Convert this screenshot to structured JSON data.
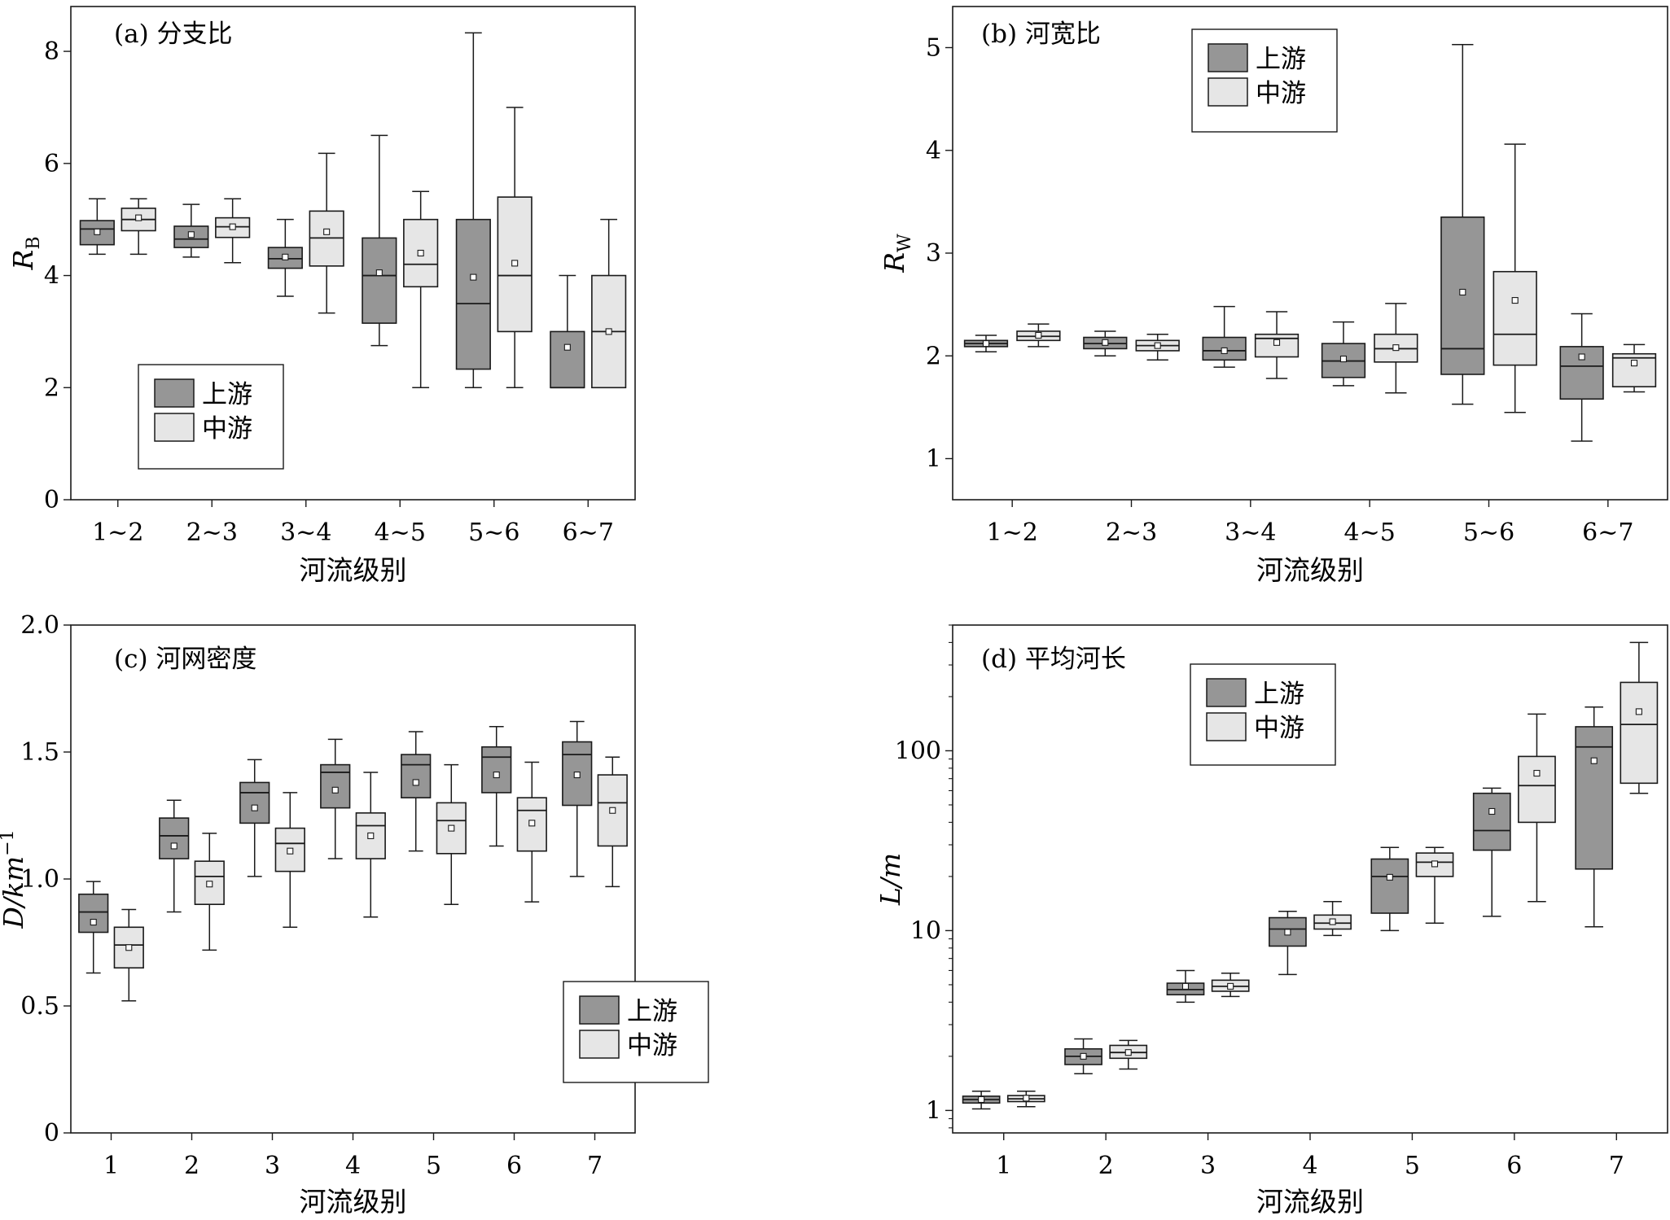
{
  "colors": {
    "upstream": "#969696",
    "midstream": "#e6e6e6",
    "stroke": "#1a1a1a"
  },
  "legend_labels": [
    "上游",
    "中游"
  ],
  "chart_data": [
    {
      "type": "box",
      "title": "(a) 分支比",
      "ylabel": "R",
      "ylabel_sub": "B",
      "xlabel": "河流级别",
      "ylim": [
        0,
        8.8
      ],
      "yticks": [
        0,
        2,
        4,
        6,
        8
      ],
      "ytick_labels": [
        "0",
        "2",
        "4",
        "6",
        "8"
      ],
      "yscale": "linear",
      "legend": "bottom-left",
      "categories": [
        "1~2",
        "2~3",
        "3~4",
        "4~5",
        "5~6",
        "6~7"
      ],
      "series": [
        {
          "name": "上游",
          "boxes": [
            {
              "min": 4.38,
              "q1": 4.55,
              "median": 4.83,
              "q3": 4.98,
              "max": 5.37,
              "mean": 4.78
            },
            {
              "min": 4.33,
              "q1": 4.5,
              "median": 4.65,
              "q3": 4.88,
              "max": 5.27,
              "mean": 4.73
            },
            {
              "min": 3.63,
              "q1": 4.13,
              "median": 4.3,
              "q3": 4.5,
              "max": 5.0,
              "mean": 4.33
            },
            {
              "min": 2.75,
              "q1": 3.15,
              "median": 4.0,
              "q3": 4.67,
              "max": 6.5,
              "mean": 4.05
            },
            {
              "min": 2.0,
              "q1": 2.33,
              "median": 3.5,
              "q3": 5.0,
              "max": 8.33,
              "mean": 3.97
            },
            {
              "min": 2.0,
              "q1": 2.0,
              "median": 2.0,
              "q3": 3.0,
              "max": 4.0,
              "mean": 2.72
            }
          ]
        },
        {
          "name": "中游",
          "boxes": [
            {
              "min": 4.38,
              "q1": 4.8,
              "median": 5.0,
              "q3": 5.2,
              "max": 5.37,
              "mean": 5.03
            },
            {
              "min": 4.23,
              "q1": 4.68,
              "median": 4.87,
              "q3": 5.03,
              "max": 5.37,
              "mean": 4.87
            },
            {
              "min": 3.33,
              "q1": 4.17,
              "median": 4.67,
              "q3": 5.15,
              "max": 6.18,
              "mean": 4.78
            },
            {
              "min": 2.0,
              "q1": 3.8,
              "median": 4.2,
              "q3": 5.0,
              "max": 5.5,
              "mean": 4.4
            },
            {
              "min": 2.0,
              "q1": 3.0,
              "median": 4.0,
              "q3": 5.4,
              "max": 7.0,
              "mean": 4.22
            },
            {
              "min": 2.0,
              "q1": 2.0,
              "median": 3.0,
              "q3": 4.0,
              "max": 5.0,
              "mean": 3.0
            }
          ]
        }
      ]
    },
    {
      "type": "box",
      "title": "(b) 河宽比",
      "ylabel": "R",
      "ylabel_sub": "W",
      "xlabel": "河流级别",
      "ylim": [
        0.6,
        5.4
      ],
      "yticks": [
        1,
        2,
        3,
        4,
        5
      ],
      "ytick_labels": [
        "1",
        "2",
        "3",
        "4",
        "5"
      ],
      "yscale": "linear",
      "legend": "top-left",
      "categories": [
        "1~2",
        "2~3",
        "3~4",
        "4~5",
        "5~6",
        "6~7"
      ],
      "series": [
        {
          "name": "上游",
          "boxes": [
            {
              "min": 2.04,
              "q1": 2.09,
              "median": 2.12,
              "q3": 2.15,
              "max": 2.2,
              "mean": 2.12
            },
            {
              "min": 2.0,
              "q1": 2.07,
              "median": 2.12,
              "q3": 2.18,
              "max": 2.24,
              "mean": 2.13
            },
            {
              "min": 1.89,
              "q1": 1.96,
              "median": 2.05,
              "q3": 2.18,
              "max": 2.48,
              "mean": 2.05
            },
            {
              "min": 1.71,
              "q1": 1.79,
              "median": 1.95,
              "q3": 2.12,
              "max": 2.33,
              "mean": 1.97
            },
            {
              "min": 1.53,
              "q1": 1.82,
              "median": 2.07,
              "q3": 3.35,
              "max": 5.03,
              "mean": 2.62
            },
            {
              "min": 1.17,
              "q1": 1.58,
              "median": 1.9,
              "q3": 2.09,
              "max": 2.41,
              "mean": 1.99
            }
          ]
        },
        {
          "name": "中游",
          "boxes": [
            {
              "min": 2.09,
              "q1": 2.15,
              "median": 2.19,
              "q3": 2.24,
              "max": 2.31,
              "mean": 2.2
            },
            {
              "min": 1.96,
              "q1": 2.05,
              "median": 2.1,
              "q3": 2.15,
              "max": 2.21,
              "mean": 2.1
            },
            {
              "min": 1.78,
              "q1": 1.99,
              "median": 2.17,
              "q3": 2.21,
              "max": 2.43,
              "mean": 2.13
            },
            {
              "min": 1.64,
              "q1": 1.94,
              "median": 2.07,
              "q3": 2.21,
              "max": 2.51,
              "mean": 2.08
            },
            {
              "min": 1.45,
              "q1": 1.91,
              "median": 2.21,
              "q3": 2.82,
              "max": 4.06,
              "mean": 2.54
            },
            {
              "min": 1.65,
              "q1": 1.7,
              "median": 1.98,
              "q3": 2.02,
              "max": 2.11,
              "mean": 1.93
            }
          ]
        }
      ]
    },
    {
      "type": "box",
      "title": "(c) 河网密度",
      "ylabel": "D/km",
      "ylabel_sup": "−1",
      "xlabel": "河流级别",
      "ylim": [
        0,
        2.0
      ],
      "yticks": [
        0,
        0.5,
        1.0,
        1.5,
        2.0
      ],
      "ytick_labels": [
        "0",
        "0.5",
        "1.0",
        "1.5",
        "2.0"
      ],
      "yscale": "linear",
      "legend": "bottom-right",
      "categories": [
        "1",
        "2",
        "3",
        "4",
        "5",
        "6",
        "7"
      ],
      "series": [
        {
          "name": "上游",
          "boxes": [
            {
              "min": 0.63,
              "q1": 0.79,
              "median": 0.87,
              "q3": 0.94,
              "max": 0.99,
              "mean": 0.83
            },
            {
              "min": 0.87,
              "q1": 1.08,
              "median": 1.17,
              "q3": 1.24,
              "max": 1.31,
              "mean": 1.13
            },
            {
              "min": 1.01,
              "q1": 1.22,
              "median": 1.34,
              "q3": 1.38,
              "max": 1.47,
              "mean": 1.28
            },
            {
              "min": 1.08,
              "q1": 1.28,
              "median": 1.42,
              "q3": 1.45,
              "max": 1.55,
              "mean": 1.35
            },
            {
              "min": 1.11,
              "q1": 1.32,
              "median": 1.45,
              "q3": 1.49,
              "max": 1.58,
              "mean": 1.38
            },
            {
              "min": 1.13,
              "q1": 1.34,
              "median": 1.48,
              "q3": 1.52,
              "max": 1.6,
              "mean": 1.41
            },
            {
              "min": 1.01,
              "q1": 1.29,
              "median": 1.49,
              "q3": 1.54,
              "max": 1.62,
              "mean": 1.41
            }
          ]
        },
        {
          "name": "中游",
          "boxes": [
            {
              "min": 0.52,
              "q1": 0.65,
              "median": 0.74,
              "q3": 0.81,
              "max": 0.88,
              "mean": 0.73
            },
            {
              "min": 0.72,
              "q1": 0.9,
              "median": 1.01,
              "q3": 1.07,
              "max": 1.18,
              "mean": 0.98
            },
            {
              "min": 0.81,
              "q1": 1.03,
              "median": 1.14,
              "q3": 1.2,
              "max": 1.34,
              "mean": 1.11
            },
            {
              "min": 0.85,
              "q1": 1.08,
              "median": 1.21,
              "q3": 1.26,
              "max": 1.42,
              "mean": 1.17
            },
            {
              "min": 0.9,
              "q1": 1.1,
              "median": 1.23,
              "q3": 1.3,
              "max": 1.45,
              "mean": 1.2
            },
            {
              "min": 0.91,
              "q1": 1.11,
              "median": 1.27,
              "q3": 1.32,
              "max": 1.46,
              "mean": 1.22
            },
            {
              "min": 0.97,
              "q1": 1.13,
              "median": 1.3,
              "q3": 1.41,
              "max": 1.48,
              "mean": 1.27
            }
          ]
        }
      ]
    },
    {
      "type": "box",
      "title": "(d) 平均河长",
      "ylabel": "L/m",
      "xlabel": "河流级别",
      "ylim": [
        0.75,
        500
      ],
      "yticks": [
        1,
        10,
        100
      ],
      "ytick_labels": [
        "1",
        "10",
        "100"
      ],
      "yscale": "log",
      "legend": "top-left",
      "categories": [
        "1",
        "2",
        "3",
        "4",
        "5",
        "6",
        "7"
      ],
      "series": [
        {
          "name": "上游",
          "boxes": [
            {
              "min": 1.02,
              "q1": 1.1,
              "median": 1.15,
              "q3": 1.2,
              "max": 1.28,
              "mean": 1.15
            },
            {
              "min": 1.6,
              "q1": 1.8,
              "median": 2.0,
              "q3": 2.2,
              "max": 2.5,
              "mean": 2.0
            },
            {
              "min": 4.0,
              "q1": 4.4,
              "median": 4.7,
              "q3": 5.1,
              "max": 6.0,
              "mean": 4.9
            },
            {
              "min": 5.7,
              "q1": 8.2,
              "median": 10.2,
              "q3": 11.8,
              "max": 12.8,
              "mean": 9.8
            },
            {
              "min": 10.0,
              "q1": 12.5,
              "median": 20.0,
              "q3": 25.0,
              "max": 29.0,
              "mean": 19.8
            },
            {
              "min": 12.0,
              "q1": 28.0,
              "median": 36.0,
              "q3": 58.0,
              "max": 62.0,
              "mean": 46.0
            },
            {
              "min": 10.5,
              "q1": 22.0,
              "median": 105.0,
              "q3": 136.0,
              "max": 175.0,
              "mean": 88.0
            }
          ]
        },
        {
          "name": "中游",
          "boxes": [
            {
              "min": 1.05,
              "q1": 1.12,
              "median": 1.16,
              "q3": 1.21,
              "max": 1.28,
              "mean": 1.17
            },
            {
              "min": 1.7,
              "q1": 1.95,
              "median": 2.1,
              "q3": 2.3,
              "max": 2.45,
              "mean": 2.1
            },
            {
              "min": 4.3,
              "q1": 4.6,
              "median": 4.9,
              "q3": 5.3,
              "max": 5.8,
              "mean": 4.9
            },
            {
              "min": 9.4,
              "q1": 10.2,
              "median": 11.0,
              "q3": 12.2,
              "max": 14.5,
              "mean": 11.2
            },
            {
              "min": 11.0,
              "q1": 20.0,
              "median": 24.0,
              "q3": 27.0,
              "max": 29.0,
              "mean": 23.5
            },
            {
              "min": 14.5,
              "q1": 40.0,
              "median": 64.0,
              "q3": 93.0,
              "max": 160.0,
              "mean": 75.0
            },
            {
              "min": 58.0,
              "q1": 66.0,
              "median": 140.0,
              "q3": 240.0,
              "max": 400.0,
              "mean": 165.0
            }
          ]
        }
      ]
    }
  ]
}
